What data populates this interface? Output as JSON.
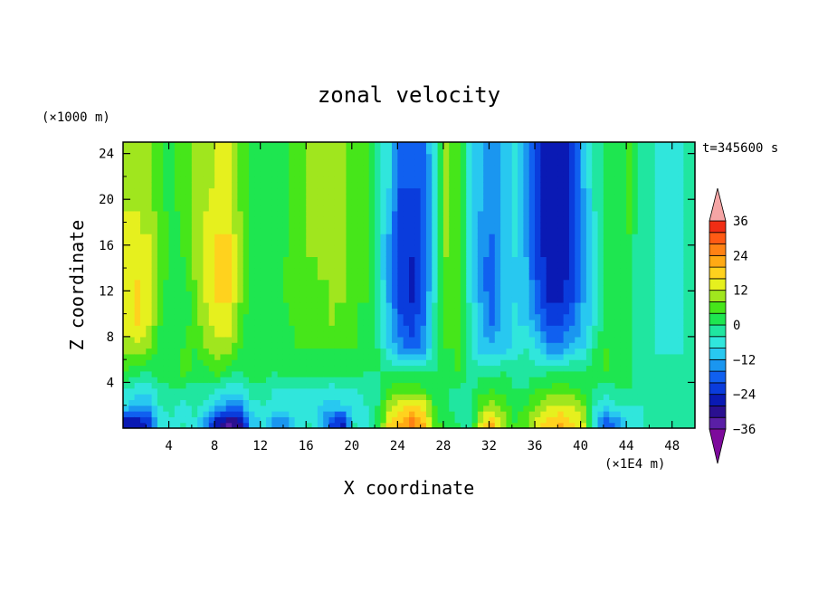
{
  "chart_data": {
    "type": "heatmap",
    "title": "zonal velocity",
    "xlabel": "X coordinate",
    "ylabel": "Z coordinate",
    "x_unit": "(×1E4 m)",
    "y_unit": "(×1000 m)",
    "time_label": "t=345600 s",
    "xlim": [
      0,
      50
    ],
    "ylim": [
      0,
      25
    ],
    "x_ticks": [
      4,
      8,
      12,
      16,
      20,
      24,
      28,
      32,
      36,
      40,
      44,
      48
    ],
    "x_tick_labels": [
      "4",
      "8",
      "12",
      "16",
      "20",
      "24",
      "28",
      "32",
      "36",
      "40",
      "44",
      "48"
    ],
    "y_ticks": [
      4,
      8,
      12,
      16,
      20,
      24
    ],
    "y_tick_labels": [
      "4",
      "8",
      "12",
      "16",
      "20",
      "24"
    ],
    "colorbar": {
      "levels": [
        -40,
        -36,
        -32,
        -28,
        -24,
        -20,
        -16,
        -12,
        -8,
        -4,
        0,
        4,
        8,
        12,
        16,
        20,
        24,
        28,
        32,
        36,
        40
      ],
      "tick_values": [
        36,
        24,
        12,
        0,
        -12,
        -24,
        -36
      ],
      "tick_labels": [
        "36",
        "24",
        "12",
        "0",
        "−12",
        "−24",
        "−36"
      ],
      "colors": [
        "#7d0a9c",
        "#5a1fa6",
        "#2a1090",
        "#0a1ab4",
        "#0a3cdc",
        "#1060f0",
        "#1a96f0",
        "#28c8f0",
        "#30e6dc",
        "#20e6a0",
        "#1ee650",
        "#46e61a",
        "#a0e61e",
        "#e6f01e",
        "#ffd21e",
        "#ffaa14",
        "#ff8214",
        "#ff5a14",
        "#f02d14",
        "#dc1414",
        "#f5a5a5"
      ]
    },
    "columns": [
      {
        "x": 0.5,
        "profile": [
          -28,
          -8,
          -4,
          4,
          10,
          14,
          14,
          14,
          12,
          12,
          12,
          10,
          10
        ]
      },
      {
        "x": 1.5,
        "profile": [
          -28,
          -12,
          -6,
          2,
          10,
          16,
          16,
          16,
          14,
          12,
          12,
          10,
          10
        ]
      },
      {
        "x": 2.5,
        "profile": [
          -22,
          -12,
          -6,
          0,
          8,
          12,
          14,
          12,
          12,
          12,
          10,
          10,
          10
        ]
      },
      {
        "x": 3.5,
        "profile": [
          -8,
          -4,
          -2,
          2,
          2,
          4,
          4,
          6,
          6,
          6,
          6,
          4,
          4
        ]
      },
      {
        "x": 4.5,
        "profile": [
          -6,
          -2,
          0,
          2,
          2,
          2,
          2,
          2,
          2,
          2,
          2,
          2,
          2
        ]
      },
      {
        "x": 5.5,
        "profile": [
          -4,
          -6,
          0,
          6,
          4,
          2,
          0,
          2,
          4,
          4,
          6,
          6,
          6
        ]
      },
      {
        "x": 6.5,
        "profile": [
          -6,
          -2,
          -2,
          2,
          4,
          6,
          6,
          8,
          8,
          8,
          8,
          8,
          8
        ]
      },
      {
        "x": 7.5,
        "profile": [
          -16,
          -6,
          -2,
          2,
          8,
          10,
          12,
          12,
          12,
          12,
          12,
          10,
          10
        ]
      },
      {
        "x": 8.5,
        "profile": [
          -28,
          -12,
          -4,
          6,
          10,
          14,
          16,
          18,
          16,
          16,
          14,
          14,
          12
        ]
      },
      {
        "x": 9.5,
        "profile": [
          -34,
          -14,
          -6,
          2,
          10,
          14,
          16,
          16,
          16,
          16,
          14,
          12,
          12
        ]
      },
      {
        "x": 10.5,
        "profile": [
          -30,
          -14,
          -6,
          0,
          4,
          6,
          8,
          8,
          8,
          8,
          8,
          6,
          6
        ]
      },
      {
        "x": 11.5,
        "profile": [
          -12,
          -6,
          -2,
          2,
          2,
          0,
          2,
          2,
          2,
          2,
          2,
          2,
          2
        ]
      },
      {
        "x": 12.5,
        "profile": [
          -6,
          -4,
          -2,
          2,
          0,
          0,
          2,
          2,
          2,
          2,
          2,
          2,
          2
        ]
      },
      {
        "x": 13.5,
        "profile": [
          -14,
          -6,
          -4,
          0,
          0,
          2,
          2,
          2,
          2,
          2,
          2,
          2,
          2
        ]
      },
      {
        "x": 14.5,
        "profile": [
          -14,
          -6,
          -4,
          2,
          2,
          2,
          4,
          4,
          4,
          2,
          2,
          2,
          2
        ]
      },
      {
        "x": 15.5,
        "profile": [
          -6,
          -6,
          -4,
          2,
          4,
          6,
          6,
          6,
          6,
          6,
          6,
          6,
          6
        ]
      },
      {
        "x": 16.5,
        "profile": [
          -4,
          -6,
          -4,
          2,
          4,
          6,
          6,
          6,
          8,
          8,
          8,
          8,
          8
        ]
      },
      {
        "x": 17.5,
        "profile": [
          -10,
          -8,
          -4,
          2,
          4,
          6,
          6,
          8,
          8,
          8,
          10,
          10,
          10
        ]
      },
      {
        "x": 18.5,
        "profile": [
          -22,
          -10,
          -6,
          2,
          4,
          8,
          8,
          8,
          10,
          10,
          10,
          10,
          10
        ]
      },
      {
        "x": 19.5,
        "profile": [
          -26,
          -8,
          -4,
          2,
          4,
          6,
          8,
          8,
          8,
          8,
          8,
          8,
          8
        ]
      },
      {
        "x": 20.5,
        "profile": [
          -4,
          -8,
          -4,
          2,
          4,
          4,
          4,
          6,
          6,
          6,
          6,
          6,
          6
        ]
      },
      {
        "x": 21.5,
        "profile": [
          -8,
          -4,
          -2,
          0,
          2,
          2,
          4,
          4,
          4,
          4,
          4,
          4,
          4
        ]
      },
      {
        "x": 22.5,
        "profile": [
          0,
          0,
          -2,
          0,
          0,
          -2,
          -2,
          -2,
          -4,
          -4,
          -4,
          -2,
          -2
        ]
      },
      {
        "x": 23.5,
        "profile": [
          16,
          10,
          4,
          0,
          -8,
          -10,
          -12,
          -14,
          -14,
          -12,
          -10,
          -8,
          -8
        ]
      },
      {
        "x": 24.5,
        "profile": [
          20,
          14,
          6,
          0,
          -14,
          -18,
          -22,
          -22,
          -24,
          -22,
          -22,
          -20,
          -18
        ]
      },
      {
        "x": 25.5,
        "profile": [
          26,
          16,
          6,
          0,
          -18,
          -22,
          -24,
          -26,
          -24,
          -22,
          -22,
          -20,
          -20
        ]
      },
      {
        "x": 26.5,
        "profile": [
          20,
          14,
          4,
          0,
          -14,
          -16,
          -18,
          -20,
          -20,
          -20,
          -20,
          -20,
          -18
        ]
      },
      {
        "x": 27.5,
        "profile": [
          6,
          4,
          2,
          0,
          -4,
          -4,
          -4,
          -6,
          -6,
          -6,
          -6,
          -6,
          -6
        ]
      },
      {
        "x": 28.5,
        "profile": [
          2,
          0,
          0,
          2,
          4,
          6,
          6,
          6,
          8,
          8,
          8,
          8,
          8
        ]
      },
      {
        "x": 29.5,
        "profile": [
          0,
          -2,
          0,
          4,
          4,
          4,
          6,
          6,
          6,
          6,
          6,
          6,
          6
        ]
      },
      {
        "x": 30.5,
        "profile": [
          -4,
          -4,
          -2,
          0,
          -4,
          -4,
          -4,
          -6,
          -6,
          -6,
          -6,
          -6,
          -6
        ]
      },
      {
        "x": 31.5,
        "profile": [
          12,
          6,
          2,
          -2,
          -10,
          -12,
          -12,
          -14,
          -14,
          -14,
          -12,
          -12,
          -12
        ]
      },
      {
        "x": 32.5,
        "profile": [
          20,
          10,
          4,
          -2,
          -10,
          -16,
          -18,
          -20,
          -18,
          -16,
          -16,
          -14,
          -14
        ]
      },
      {
        "x": 33.5,
        "profile": [
          10,
          6,
          2,
          0,
          -10,
          -10,
          -12,
          -12,
          -12,
          -12,
          -12,
          -12,
          -12
        ]
      },
      {
        "x": 34.5,
        "profile": [
          4,
          2,
          0,
          -2,
          -6,
          -8,
          -8,
          -10,
          -8,
          -8,
          -8,
          -8,
          -8
        ]
      },
      {
        "x": 35.5,
        "profile": [
          6,
          4,
          0,
          -2,
          -4,
          -8,
          -10,
          -12,
          -12,
          -14,
          -14,
          -14,
          -14
        ]
      },
      {
        "x": 36.5,
        "profile": [
          14,
          8,
          4,
          -2,
          -8,
          -14,
          -18,
          -20,
          -22,
          -22,
          -22,
          -22,
          -22
        ]
      },
      {
        "x": 37.5,
        "profile": [
          18,
          12,
          4,
          0,
          -14,
          -20,
          -24,
          -26,
          -26,
          -28,
          -28,
          -28,
          -28
        ]
      },
      {
        "x": 38.5,
        "profile": [
          20,
          12,
          6,
          0,
          -14,
          -20,
          -24,
          -26,
          -28,
          -28,
          -28,
          -28,
          -28
        ]
      },
      {
        "x": 39.5,
        "profile": [
          16,
          12,
          4,
          0,
          -10,
          -16,
          -20,
          -22,
          -24,
          -24,
          -24,
          -22,
          -22
        ]
      },
      {
        "x": 40.5,
        "profile": [
          12,
          8,
          2,
          0,
          -8,
          -12,
          -12,
          -14,
          -14,
          -14,
          -14,
          -12,
          -12
        ]
      },
      {
        "x": 41.5,
        "profile": [
          -8,
          -4,
          0,
          2,
          0,
          -4,
          -6,
          -6,
          -6,
          -6,
          -4,
          -4,
          -4
        ]
      },
      {
        "x": 42.5,
        "profile": [
          -20,
          -8,
          -2,
          4,
          4,
          2,
          2,
          2,
          2,
          2,
          2,
          2,
          2
        ]
      },
      {
        "x": 43.5,
        "profile": [
          -14,
          -4,
          0,
          2,
          2,
          2,
          2,
          2,
          2,
          2,
          2,
          2,
          2
        ]
      },
      {
        "x": 44.5,
        "profile": [
          -8,
          -4,
          0,
          0,
          0,
          0,
          2,
          2,
          2,
          4,
          4,
          4,
          4
        ]
      },
      {
        "x": 45.5,
        "profile": [
          -6,
          -4,
          -2,
          0,
          -2,
          -2,
          -4,
          -4,
          -4,
          -4,
          -2,
          -2,
          -2
        ]
      },
      {
        "x": 46.5,
        "profile": [
          -2,
          -4,
          -2,
          0,
          -4,
          -4,
          -4,
          -4,
          -4,
          -4,
          -4,
          -4,
          -4
        ]
      },
      {
        "x": 47.5,
        "profile": [
          -2,
          -4,
          -2,
          0,
          -6,
          -6,
          -6,
          -6,
          -6,
          -6,
          -6,
          -6,
          -6
        ]
      },
      {
        "x": 48.5,
        "profile": [
          -4,
          -4,
          -2,
          0,
          -6,
          -6,
          -6,
          -6,
          -6,
          -6,
          -6,
          -6,
          -6
        ]
      },
      {
        "x": 49.5,
        "profile": [
          -2,
          -2,
          -2,
          0,
          -4,
          -4,
          -4,
          -4,
          -4,
          -4,
          -4,
          -4,
          -4
        ]
      }
    ],
    "profile_z": [
      0.5,
      2,
      3.5,
      5,
      7,
      9,
      11,
      13,
      15,
      17,
      19,
      21,
      24
    ],
    "grid": false
  }
}
